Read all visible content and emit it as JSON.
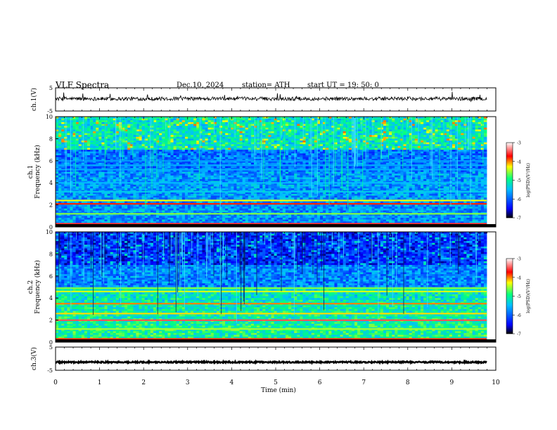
{
  "header": {
    "title": "VLF  Spectra",
    "date": "Dec.10, 2024",
    "station": "station= ATH",
    "start_ut": "start  UT  =    19: 50: 0"
  },
  "colors": {
    "colorbar_stops": [
      "#000000",
      "#0000ff",
      "#00c0ff",
      "#00ff80",
      "#ffff00",
      "#ff0000",
      "#ffffff"
    ],
    "trace": "#000000"
  },
  "chart_data": [
    {
      "type": "line",
      "panel": "ch1-waveform",
      "ylabel": "ch.1(V)",
      "ylim": [
        -5,
        5
      ],
      "yticks": [
        "5",
        "-5"
      ],
      "xlim": [
        0,
        10
      ],
      "series": [
        {
          "values_note": "",
          "level_v": 0.3,
          "spread_v": 0.8
        }
      ]
    },
    {
      "type": "heatmap",
      "panel": "ch1-spectrogram",
      "ylabel": "ch.1\nFrequency  (kHz)",
      "ylabel_lines": [
        "ch.1",
        "Frequency  (kHz)"
      ],
      "ylim": [
        0,
        10
      ],
      "yticks": [
        "0",
        "2",
        "4",
        "6",
        "8",
        "10"
      ],
      "xlim": [
        0,
        9.8
      ],
      "colorbar": {
        "label": "log(PSD)(V²/Hz)",
        "ticks": [
          "-3",
          "-4",
          "-5",
          "-6",
          "-7"
        ],
        "range": [
          -7,
          -3
        ]
      },
      "bands_khz": [
        0.3,
        1.2,
        2.1,
        2.4,
        3.2,
        4.0,
        5.2,
        5.6,
        6.0
      ],
      "band_levels": [
        -3.6,
        -4.6,
        -3.8,
        -4.3,
        -5.4,
        -5.5,
        -5.6,
        -5.6,
        -5.7
      ]
    },
    {
      "type": "heatmap",
      "panel": "ch2-spectrogram",
      "ylabel_lines": [
        "ch.2",
        "Frequency  (kHz)"
      ],
      "ylim": [
        0,
        10
      ],
      "yticks": [
        "0",
        "2",
        "4",
        "6",
        "8",
        "10"
      ],
      "xlim": [
        0,
        9.8
      ],
      "colorbar": {
        "label": "log(PSD)(V²/Hz)",
        "ticks": [
          "-3",
          "-4",
          "-5",
          "-6",
          "-7"
        ],
        "range": [
          -7,
          -3
        ]
      },
      "bands_khz": [
        0.3,
        1.2,
        2.0,
        2.6,
        3.5,
        4.6,
        4.9
      ],
      "band_levels": [
        -3.8,
        -4.5,
        -3.5,
        -4.2,
        -4.0,
        -4.4,
        -4.6
      ]
    },
    {
      "type": "line",
      "panel": "ch3-waveform",
      "ylabel": "ch.3(V)",
      "ylim": [
        -5,
        5
      ],
      "yticks": [
        "5",
        "-5"
      ],
      "xlim": [
        0,
        10
      ],
      "series": [
        {
          "level_v": -1.5,
          "spread_v": 0.3
        }
      ]
    }
  ],
  "xaxis": {
    "label": "Time  (min)",
    "ticks": [
      "0",
      "1",
      "2",
      "3",
      "4",
      "5",
      "6",
      "7",
      "8",
      "9",
      "10"
    ]
  }
}
